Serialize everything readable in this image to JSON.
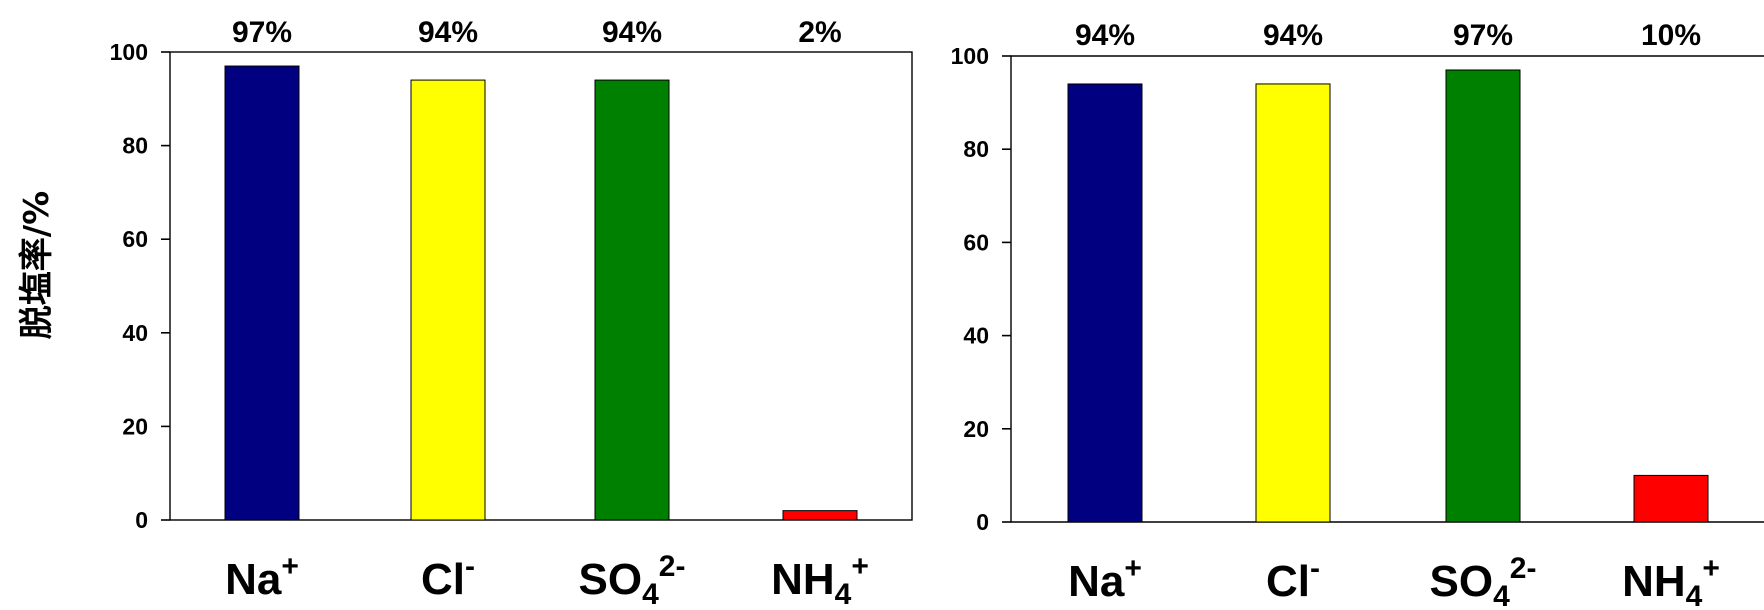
{
  "y_axis_label": "脱塩率/%",
  "chart_data": [
    {
      "type": "bar",
      "ylabel": "脱塩率/%",
      "ylim": [
        0,
        100
      ],
      "yticks": [
        0,
        20,
        40,
        60,
        80,
        100
      ],
      "categories": [
        {
          "base": "Na",
          "sub": "",
          "sup": "+"
        },
        {
          "base": "Cl",
          "sub": "",
          "sup": "-"
        },
        {
          "base": "SO",
          "sub": "4",
          "sup": "2-"
        },
        {
          "base": "NH",
          "sub": "4",
          "sup": "+"
        }
      ],
      "values": [
        97,
        94,
        94,
        2
      ],
      "data_labels": [
        "97%",
        "94%",
        "94%",
        "2%"
      ],
      "colors": [
        "#000080",
        "#FFFF00",
        "#008000",
        "#FF0000"
      ],
      "grid": false
    },
    {
      "type": "bar",
      "ylabel": "",
      "ylim": [
        0,
        100
      ],
      "yticks": [
        0,
        20,
        40,
        60,
        80,
        100
      ],
      "categories": [
        {
          "base": "Na",
          "sub": "",
          "sup": "+"
        },
        {
          "base": "Cl",
          "sub": "",
          "sup": "-"
        },
        {
          "base": "SO",
          "sub": "4",
          "sup": "2-"
        },
        {
          "base": "NH",
          "sub": "4",
          "sup": "+"
        }
      ],
      "values": [
        94,
        94,
        97,
        10
      ],
      "data_labels": [
        "94%",
        "94%",
        "97%",
        "10%"
      ],
      "colors": [
        "#000080",
        "#FFFF00",
        "#008000",
        "#FF0000"
      ],
      "grid": false
    }
  ]
}
